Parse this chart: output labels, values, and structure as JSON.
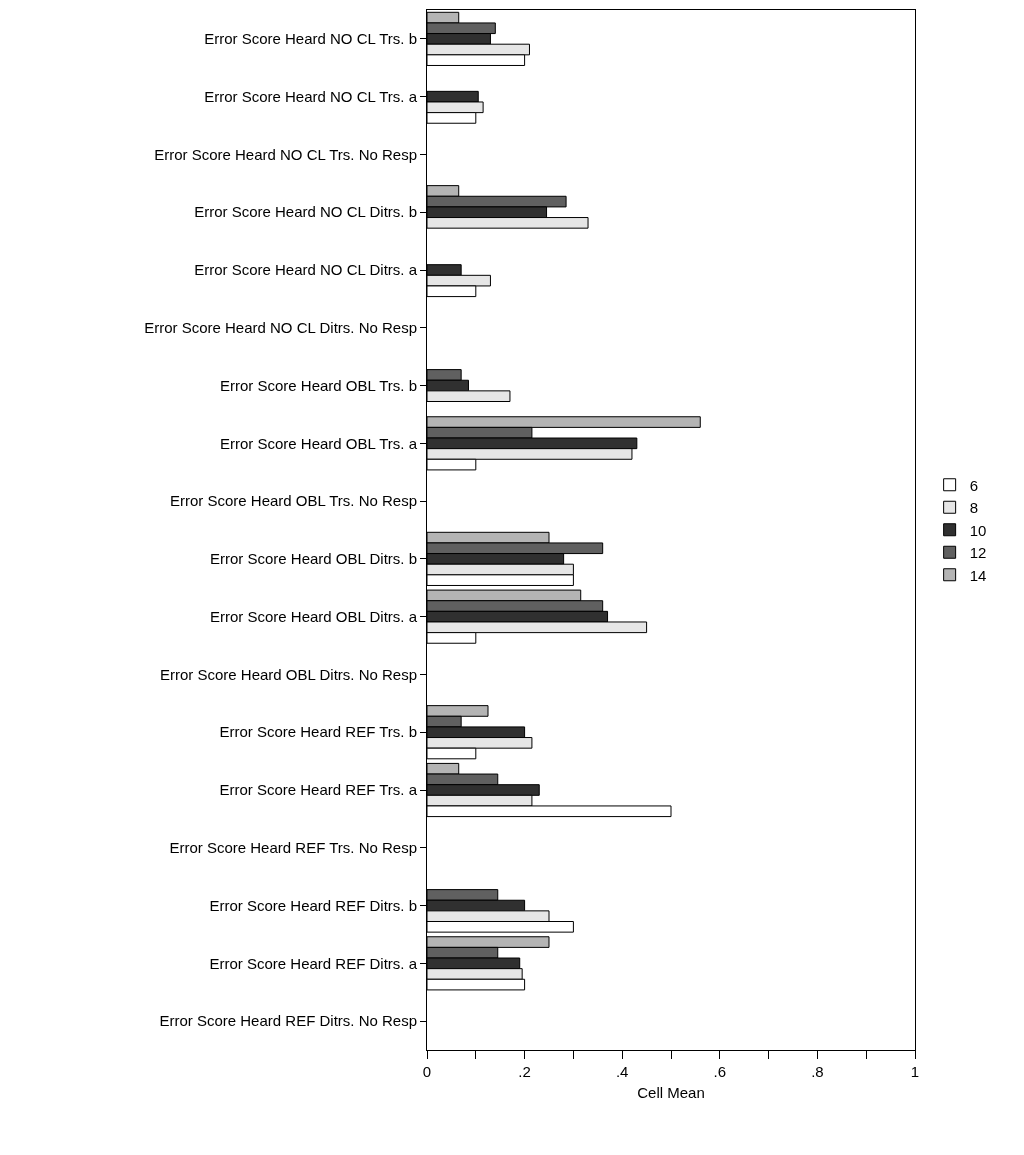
{
  "chart_data": {
    "type": "bar",
    "orientation": "horizontal",
    "xlabel": "Cell Mean",
    "categories": [
      "Error Score Heard NO CL Trs. b",
      "Error Score Heard NO CL Trs. a",
      "Error Score Heard NO CL Trs. No Resp",
      "Error Score Heard NO CL Ditrs. b",
      "Error Score Heard NO CL Ditrs. a",
      "Error Score Heard NO CL Ditrs. No Resp",
      "Error Score Heard OBL Trs. b",
      "Error Score Heard OBL Trs. a",
      "Error Score Heard OBL Trs. No Resp",
      "Error Score Heard OBL Ditrs. b",
      "Error Score Heard OBL Ditrs. a",
      "Error Score Heard OBL Ditrs. No Resp",
      "Error Score Heard REF Trs. b",
      "Error Score Heard REF Trs. a",
      "Error Score Heard REF Trs. No Resp",
      "Error Score Heard REF Ditrs. b",
      "Error Score Heard REF Ditrs. a",
      "Error Score Heard REF Ditrs. No Resp"
    ],
    "series": [
      {
        "name": "6",
        "color": "#ffffff",
        "values": [
          0.2,
          0.1,
          null,
          null,
          0.1,
          null,
          null,
          0.1,
          null,
          0.3,
          0.1,
          null,
          0.1,
          0.5,
          null,
          0.3,
          0.2,
          null
        ]
      },
      {
        "name": "8",
        "color": "#e6e6e6",
        "values": [
          0.21,
          0.115,
          null,
          0.33,
          0.13,
          null,
          0.17,
          0.42,
          null,
          0.3,
          0.45,
          null,
          0.215,
          0.215,
          null,
          0.25,
          0.195,
          null
        ]
      },
      {
        "name": "10",
        "color": "#303030",
        "values": [
          0.13,
          0.105,
          null,
          0.245,
          0.07,
          null,
          0.085,
          0.43,
          null,
          0.28,
          0.37,
          null,
          0.2,
          0.23,
          null,
          0.2,
          0.19,
          null
        ]
      },
      {
        "name": "12",
        "color": "#606060",
        "values": [
          0.14,
          null,
          null,
          0.285,
          null,
          null,
          0.07,
          0.215,
          null,
          0.36,
          0.36,
          null,
          0.07,
          0.145,
          null,
          0.145,
          0.145,
          null
        ]
      },
      {
        "name": "14",
        "color": "#b4b4b4",
        "values": [
          0.065,
          null,
          null,
          0.065,
          null,
          null,
          null,
          0.56,
          null,
          0.25,
          0.315,
          null,
          0.125,
          0.065,
          null,
          null,
          0.25,
          null
        ]
      }
    ],
    "xlim": [
      0,
      1
    ],
    "xticks": [
      0,
      {
        "value": 0.1,
        "label": null
      },
      {
        "value": 0.2,
        "label": ".2"
      },
      {
        "value": 0.3,
        "label": null
      },
      {
        "value": 0.4,
        "label": ".4"
      },
      {
        "value": 0.5,
        "label": null
      },
      {
        "value": 0.6,
        "label": ".6"
      },
      {
        "value": 0.7,
        "label": null
      },
      {
        "value": 0.8,
        "label": ".8"
      },
      {
        "value": 0.9,
        "label": null
      },
      1
    ],
    "legend": "right"
  }
}
